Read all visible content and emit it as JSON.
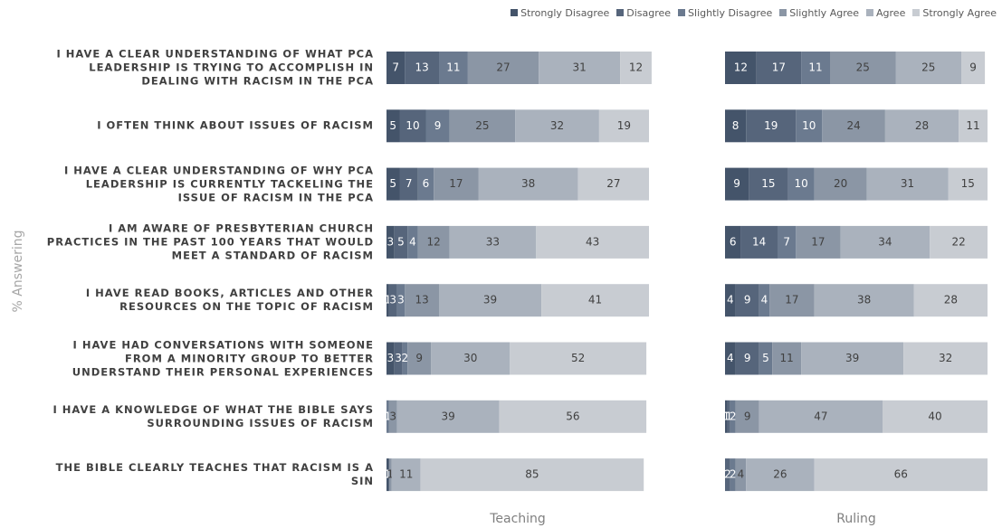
{
  "chart_data": {
    "type": "bar",
    "orientation": "horizontal",
    "stacked": true,
    "ylabel": "% Answering",
    "categories": [
      "I HAVE A CLEAR UNDERSTANDING OF WHAT PCA LEADERSHIP IS TRYING TO ACCOMPLISH IN DEALING WITH RACISM IN THE PCA",
      "I OFTEN THINK ABOUT ISSUES OF RACISM",
      "I HAVE A CLEAR UNDERSTANDING OF WHY PCA LEADERSHIP IS CURRENTLY TACKELING THE ISSUE OF RACISM IN THE PCA",
      "I AM AWARE OF PRESBYTERIAN CHURCH PRACTICES IN THE PAST 100 YEARS THAT WOULD MEET A STANDARD OF RACISM",
      "I HAVE READ BOOKS, ARTICLES AND OTHER RESOURCES ON THE TOPIC OF RACISM",
      "I HAVE HAD CONVERSATIONS WITH SOMEONE FROM A MINORITY GROUP TO BETTER UNDERSTAND THEIR PERSONAL EXPERIENCES",
      "I HAVE A KNOWLEDGE OF WHAT THE BIBLE SAYS SURROUNDING ISSUES OF RACISM",
      "THE BIBLE CLEARLY TEACHES THAT RACISM IS A SIN"
    ],
    "series": [
      {
        "name": "Strongly Disagree",
        "color": "#44546a"
      },
      {
        "name": "Disagree",
        "color": "#56657b"
      },
      {
        "name": "Slightly Disagree",
        "color": "#6b7a8f"
      },
      {
        "name": "Slightly Agree",
        "color": "#8b96a5"
      },
      {
        "name": "Agree",
        "color": "#aab2bd"
      },
      {
        "name": "Strongly Agree",
        "color": "#c8ccd2"
      }
    ],
    "panels": [
      {
        "title": "Teaching",
        "xlim": [
          0,
          100
        ],
        "values": [
          [
            7,
            5,
            5,
            3,
            1,
            3,
            0,
            1
          ],
          [
            13,
            10,
            7,
            5,
            3,
            3,
            0,
            0
          ],
          [
            11,
            9,
            6,
            4,
            3,
            2,
            1,
            0
          ],
          [
            27,
            25,
            17,
            12,
            13,
            9,
            3,
            1
          ],
          [
            31,
            32,
            38,
            33,
            39,
            30,
            39,
            11
          ],
          [
            12,
            19,
            27,
            43,
            41,
            52,
            56,
            85
          ]
        ]
      },
      {
        "title": "Ruling",
        "xlim": [
          0,
          100
        ],
        "values": [
          [
            12,
            8,
            9,
            6,
            4,
            4,
            1,
            0
          ],
          [
            17,
            19,
            15,
            14,
            9,
            9,
            1,
            2
          ],
          [
            11,
            10,
            10,
            7,
            4,
            5,
            2,
            2
          ],
          [
            25,
            24,
            20,
            17,
            17,
            11,
            9,
            4
          ],
          [
            25,
            28,
            31,
            34,
            38,
            39,
            47,
            26
          ],
          [
            9,
            11,
            15,
            22,
            28,
            32,
            40,
            66
          ]
        ]
      }
    ]
  }
}
